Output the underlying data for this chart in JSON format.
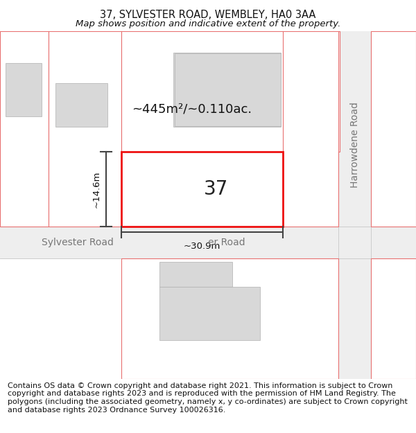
{
  "title": "37, SYLVESTER ROAD, WEMBLEY, HA0 3AA",
  "subtitle": "Map shows position and indicative extent of the property.",
  "footer": "Contains OS data © Crown copyright and database right 2021. This information is subject to Crown copyright and database rights 2023 and is reproduced with the permission of HM Land Registry. The polygons (including the associated geometry, namely x, y co-ordinates) are subject to Crown copyright and database rights 2023 Ordnance Survey 100026316.",
  "bg_color": "#ffffff",
  "road_fill": "#eeeeee",
  "building_fill": "#d8d8d8",
  "building_edge": "#b0b0b0",
  "red_line": "#e87070",
  "red_bright": "#ee1111",
  "dim_color": "#444444",
  "road_text_color": "#777777",
  "area_text": "~445m²/~0.110ac.",
  "number_text": "37",
  "dim_width": "~30.9m",
  "dim_height": "~14.6m",
  "road_label_sylvester": "Sylvester Road",
  "road_label_harrowdene": "Harrowdene Road",
  "road_label_right": "er Road",
  "title_fontsize": 10.5,
  "subtitle_fontsize": 9.5,
  "footer_fontsize": 8.0,
  "number_fontsize": 20,
  "area_fontsize": 13,
  "road_fontsize": 10,
  "dim_fontsize": 9.5
}
